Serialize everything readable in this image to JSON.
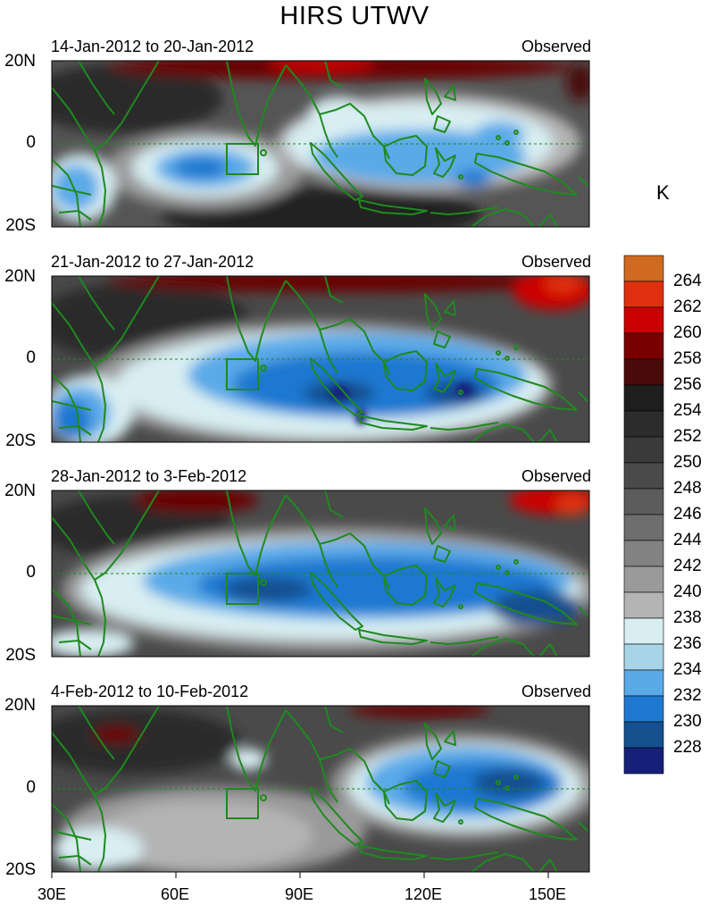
{
  "title": "HIRS UTWV",
  "unit": "K",
  "panels": [
    {
      "date_range": "14-Jan-2012 to 20-Jan-2012",
      "source": "Observed"
    },
    {
      "date_range": "21-Jan-2012 to 27-Jan-2012",
      "source": "Observed"
    },
    {
      "date_range": "28-Jan-2012 to 3-Feb-2012",
      "source": "Observed"
    },
    {
      "date_range": "4-Feb-2012 to 10-Feb-2012",
      "source": "Observed"
    }
  ],
  "lat_labels": {
    "north": "20N",
    "equator": "0",
    "south": "20S"
  },
  "lon_labels": [
    "30E",
    "60E",
    "90E",
    "120E",
    "150E"
  ],
  "colorbar": {
    "labels": [
      "264",
      "262",
      "260",
      "258",
      "256",
      "254",
      "252",
      "250",
      "248",
      "246",
      "244",
      "242",
      "240",
      "238",
      "236",
      "234",
      "232",
      "230",
      "228"
    ],
    "colors": [
      "#cf6a20",
      "#e03010",
      "#cc0000",
      "#7a0000",
      "#4a0a0a",
      "#1e1e1e",
      "#2c2c2c",
      "#3a3a3a",
      "#4a4a4a",
      "#5c5c5c",
      "#6e6e6e",
      "#828282",
      "#9a9a9a",
      "#b4b4b4",
      "#d8eef2",
      "#a8d4e8",
      "#5aaae8",
      "#1f78d0",
      "#15508f",
      "#16207a"
    ]
  },
  "colors": {
    "coastline": "#1e8a1e",
    "equator_line": "#1e8a1e",
    "region_box": "#1e8a1e"
  }
}
